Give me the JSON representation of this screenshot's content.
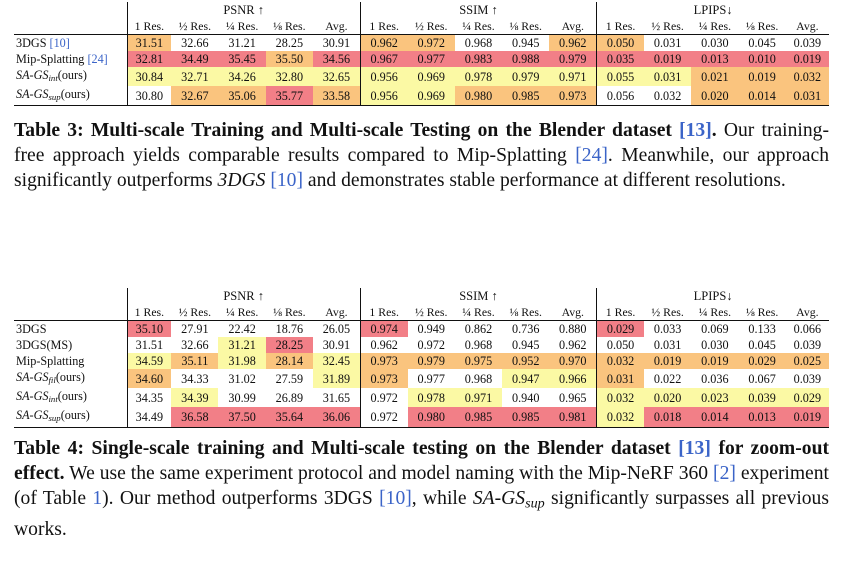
{
  "table3": {
    "groups": [
      "PSNR ↑",
      "SSIM ↑",
      "LPIPS↓"
    ],
    "subheaders": [
      "1 Res.",
      "½ Res.",
      "¼ Res.",
      "⅛ Res.",
      "Avg."
    ],
    "rows": [
      {
        "method": "3DGS",
        "ref": "[10]",
        "cells": [
          "31.51",
          "32.66",
          "31.21",
          "28.25",
          "30.91",
          "0.962",
          "0.972",
          "0.968",
          "0.945",
          "0.962",
          "0.050",
          "0.031",
          "0.030",
          "0.045",
          "0.039"
        ]
      },
      {
        "method": "Mip-Splatting",
        "ref": "[24]",
        "cells": [
          "32.81",
          "34.49",
          "35.45",
          "35.50",
          "34.56",
          "0.967",
          "0.977",
          "0.983",
          "0.988",
          "0.979",
          "0.035",
          "0.019",
          "0.013",
          "0.010",
          "0.019"
        ]
      },
      {
        "method_base": "SA-GS",
        "method_sub": "int",
        "method_suffix": "(ours)",
        "cells": [
          "30.84",
          "32.71",
          "34.26",
          "32.80",
          "32.65",
          "0.956",
          "0.969",
          "0.978",
          "0.979",
          "0.971",
          "0.055",
          "0.031",
          "0.021",
          "0.019",
          "0.032"
        ]
      },
      {
        "method_base": "SA-GS",
        "method_sub": "sup",
        "method_suffix": "(ours)",
        "cells": [
          "30.80",
          "32.67",
          "35.06",
          "35.77",
          "33.58",
          "0.956",
          "0.969",
          "0.980",
          "0.985",
          "0.973",
          "0.056",
          "0.032",
          "0.020",
          "0.014",
          "0.031"
        ]
      }
    ],
    "colors": [
      [
        "orange",
        "",
        "",
        "",
        "",
        "orange",
        "orange",
        "",
        "",
        "orange",
        "orange",
        "",
        "",
        "",
        ""
      ],
      [
        "red",
        "red",
        "red",
        "orange",
        "red",
        "red",
        "red",
        "red",
        "red",
        "red",
        "red",
        "red",
        "red",
        "red",
        "red"
      ],
      [
        "yellow",
        "yellow",
        "yellow",
        "yellow",
        "yellow",
        "yellow",
        "yellow",
        "yellow",
        "yellow",
        "yellow",
        "yellow",
        "yellow",
        "orange",
        "orange",
        "orange"
      ],
      [
        "",
        "orange",
        "orange",
        "red",
        "orange",
        "yellow",
        "yellow",
        "orange",
        "orange",
        "orange",
        "",
        "",
        "orange",
        "orange",
        "orange"
      ]
    ],
    "caption": {
      "label": "Table 3:",
      "title": "Multi-scale Training and Multi-scale Testing on the Blender dataset",
      "title_ref": "[13]",
      "text_a": "Our training-free approach yields comparable results compared to Mip-Splatting",
      "ref_a": "[24]",
      "text_b": "Meanwhile, our approach significantly outperforms",
      "italic_method": "3DGS",
      "ref_b": "[10]",
      "text_c": "and demonstrates stable performance at different resolutions."
    }
  },
  "table4": {
    "groups": [
      "PSNR ↑",
      "SSIM ↑",
      "LPIPS↓"
    ],
    "subheaders": [
      "1 Res.",
      "½ Res.",
      "¼ Res.",
      "⅛ Res.",
      "Avg."
    ],
    "rows": [
      {
        "method": "3DGS",
        "cells": [
          "35.10",
          "27.91",
          "22.42",
          "18.76",
          "26.05",
          "0.974",
          "0.949",
          "0.862",
          "0.736",
          "0.880",
          "0.029",
          "0.033",
          "0.069",
          "0.133",
          "0.066"
        ]
      },
      {
        "method": "3DGS(MS)",
        "cells": [
          "31.51",
          "32.66",
          "31.21",
          "28.25",
          "30.91",
          "0.962",
          "0.972",
          "0.968",
          "0.945",
          "0.962",
          "0.050",
          "0.031",
          "0.030",
          "0.045",
          "0.039"
        ]
      },
      {
        "method": "Mip-Splatting",
        "cells": [
          "34.59",
          "35.11",
          "31.98",
          "28.14",
          "32.45",
          "0.973",
          "0.979",
          "0.975",
          "0.952",
          "0.970",
          "0.032",
          "0.019",
          "0.019",
          "0.029",
          "0.025"
        ]
      },
      {
        "method_base": "SA-GS",
        "method_sub": "fil",
        "method_suffix": "(ours)",
        "cells": [
          "34.60",
          "34.33",
          "31.02",
          "27.59",
          "31.89",
          "0.973",
          "0.977",
          "0.968",
          "0.947",
          "0.966",
          "0.031",
          "0.022",
          "0.036",
          "0.067",
          "0.039"
        ]
      },
      {
        "method_base": "SA-GS",
        "method_sub": "int",
        "method_suffix": "(ours)",
        "cells": [
          "34.35",
          "34.39",
          "30.99",
          "26.89",
          "31.65",
          "0.972",
          "0.978",
          "0.971",
          "0.940",
          "0.965",
          "0.032",
          "0.020",
          "0.023",
          "0.039",
          "0.029"
        ]
      },
      {
        "method_base": "SA-GS",
        "method_sub": "sup",
        "method_suffix": "(ours)",
        "cells": [
          "34.49",
          "36.58",
          "37.50",
          "35.64",
          "36.06",
          "0.972",
          "0.980",
          "0.985",
          "0.985",
          "0.981",
          "0.032",
          "0.018",
          "0.014",
          "0.013",
          "0.019"
        ]
      }
    ],
    "colors": [
      [
        "red",
        "",
        "",
        "",
        "",
        "red",
        "",
        "",
        "",
        "",
        "red",
        "",
        "",
        "",
        ""
      ],
      [
        "",
        "",
        "yellow",
        "red",
        "",
        "",
        "",
        "",
        "",
        "",
        "",
        "",
        "",
        "",
        ""
      ],
      [
        "yellow",
        "orange",
        "yellow",
        "orange",
        "yellow",
        "orange",
        "orange",
        "orange",
        "orange",
        "orange",
        "orange",
        "orange",
        "orange",
        "orange",
        "orange"
      ],
      [
        "orange",
        "",
        "",
        "",
        "yellow",
        "orange",
        "",
        "",
        "yellow",
        "yellow",
        "orange",
        "",
        "",
        "",
        ""
      ],
      [
        "",
        "yellow",
        "",
        "",
        "",
        "",
        "yellow",
        "yellow",
        "",
        "",
        "yellow",
        "yellow",
        "yellow",
        "yellow",
        "yellow"
      ],
      [
        "",
        "red",
        "red",
        "red",
        "red",
        "",
        "red",
        "red",
        "red",
        "red",
        "yellow",
        "red",
        "red",
        "red",
        "red"
      ]
    ],
    "caption": {
      "label": "Table 4:",
      "title": "Single-scale training and Multi-scale testing on the Blender dataset",
      "title_ref": "[13]",
      "title_tail": "for zoom-out effect.",
      "text_a": "We use the same experiment protocol and model naming with the Mip-NeRF 360",
      "ref_a": "[2]",
      "text_b": "experiment (of Table",
      "ref_b": "1",
      "text_c": "). Our method outperforms 3DGS",
      "ref_c": "[10]",
      "text_d": ", while",
      "sa_base": "SA-GS",
      "sa_sub": "sup",
      "text_e": "significantly surpasses all previous works."
    }
  },
  "palette": {
    "red": "#f27f87",
    "orange": "#fac47e",
    "yellow": "#fbf9a4"
  }
}
